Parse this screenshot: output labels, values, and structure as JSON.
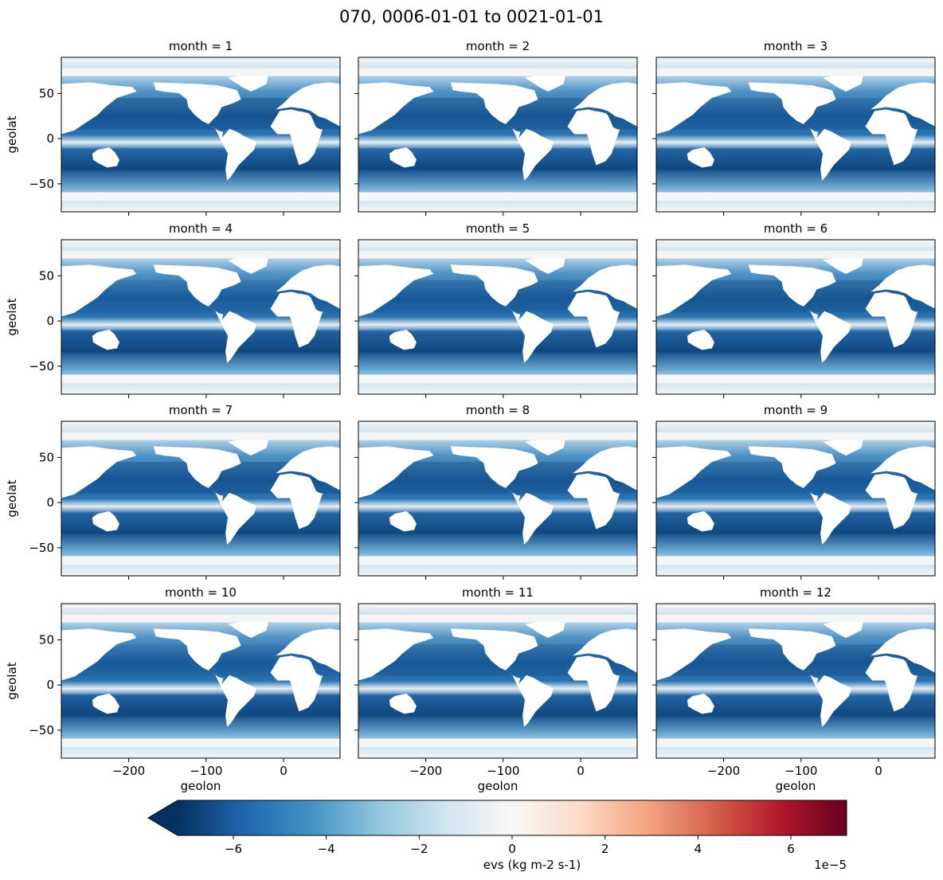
{
  "figure": {
    "title": "070, 0006-01-01 to 0021-01-01"
  },
  "chart_data": {
    "type": "heatmap",
    "layout": {
      "rows": 4,
      "cols": 3
    },
    "panels": [
      {
        "title": "month = 1",
        "month": 1
      },
      {
        "title": "month = 2",
        "month": 2
      },
      {
        "title": "month = 3",
        "month": 3
      },
      {
        "title": "month = 4",
        "month": 4
      },
      {
        "title": "month = 5",
        "month": 5
      },
      {
        "title": "month = 6",
        "month": 6
      },
      {
        "title": "month = 7",
        "month": 7
      },
      {
        "title": "month = 8",
        "month": 8
      },
      {
        "title": "month = 9",
        "month": 9
      },
      {
        "title": "month = 10",
        "month": 10
      },
      {
        "title": "month = 11",
        "month": 11
      },
      {
        "title": "month = 12",
        "month": 12
      }
    ],
    "xlabel": "geolon",
    "ylabel": "geolat",
    "xlim": [
      -287,
      73
    ],
    "ylim": [
      -81,
      90
    ],
    "xticks": [
      -200,
      -100,
      0
    ],
    "xtick_labels": [
      "−200",
      "−100",
      "0"
    ],
    "yticks": [
      -50,
      0,
      50
    ],
    "ytick_labels": [
      "−50",
      "0",
      "50"
    ],
    "colorbar": {
      "label": "evs (kg m-2 s-1)",
      "offset_text": "1e−5",
      "vmin": -7.2,
      "vmax": 7.2,
      "extend": "min",
      "ticks": [
        -6,
        -4,
        -2,
        0,
        2,
        4,
        6
      ],
      "tick_labels": [
        "−6",
        "−4",
        "−2",
        "0",
        "2",
        "4",
        "6"
      ],
      "colormap": "RdBu_r",
      "colors": [
        "#053061",
        "#2166ac",
        "#4393c3",
        "#92c5de",
        "#d1e5f0",
        "#f7f7f7",
        "#fddbc7",
        "#f4a582",
        "#d6604d",
        "#b2182b",
        "#67001f"
      ]
    }
  }
}
